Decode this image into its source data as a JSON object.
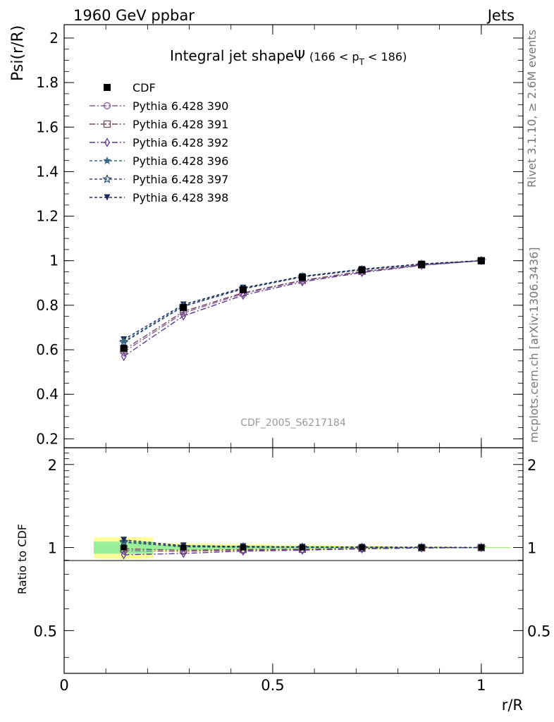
{
  "header": {
    "left": "1960 GeV ppbar",
    "right": "Jets"
  },
  "side_labels": {
    "rivet": "Rivet 3.1.10, ≥ 2.6M events",
    "mcplots": "mcplots.cern.ch [arXiv:1306.3436]"
  },
  "watermark": "CDF_2005_S6217184",
  "chart_data": [
    {
      "type": "line",
      "panel": "main",
      "title": "Integral jet shapeΨ",
      "title_suffix": "(166 < p",
      "title_sub": "T",
      "title_end": " < 186)",
      "ylabel": "Psi(r/R)",
      "xlim": [
        0,
        1.1
      ],
      "ylim": [
        0.16,
        2.06
      ],
      "yticks": [
        0.2,
        0.4,
        0.6,
        0.8,
        1,
        1.2,
        1.4,
        1.6,
        1.8,
        2
      ],
      "ytick_labels": [
        "0.2",
        "0.4",
        "0.6",
        "0.8",
        "1",
        "1.2",
        "1.4",
        "1.6",
        "1.8",
        "2"
      ],
      "x": [
        0.143,
        0.286,
        0.429,
        0.571,
        0.714,
        0.857,
        1.0
      ],
      "series": [
        {
          "name": "CDF",
          "kind": "data",
          "marker": "square-filled",
          "color": "#000000",
          "values": [
            0.606,
            0.79,
            0.87,
            0.925,
            0.958,
            0.983,
            1.0
          ]
        },
        {
          "name": "Pythia 6.428 390",
          "marker": "circle-open",
          "color": "#8a5a9e",
          "dash": "8,3,2,3",
          "values": [
            0.59,
            0.765,
            0.852,
            0.91,
            0.95,
            0.98,
            1.0
          ]
        },
        {
          "name": "Pythia 6.428 391",
          "marker": "square-open",
          "color": "#7a4a5e",
          "dash": "8,3,2,3",
          "values": [
            0.6,
            0.772,
            0.856,
            0.912,
            0.952,
            0.981,
            1.0
          ]
        },
        {
          "name": "Pythia 6.428 392",
          "marker": "diamond-open",
          "color": "#5b3a96",
          "dash": "8,3,2,3",
          "values": [
            0.57,
            0.752,
            0.845,
            0.905,
            0.947,
            0.979,
            1.0
          ]
        },
        {
          "name": "Pythia 6.428 396",
          "marker": "star-filled",
          "color": "#3a6a82",
          "dash": "4,3",
          "values": [
            0.638,
            0.797,
            0.875,
            0.928,
            0.96,
            0.985,
            1.0
          ]
        },
        {
          "name": "Pythia 6.428 397",
          "marker": "star-open",
          "color": "#2f4a6e",
          "dash": "4,3",
          "values": [
            0.633,
            0.795,
            0.873,
            0.927,
            0.959,
            0.984,
            1.0
          ]
        },
        {
          "name": "Pythia 6.428 398",
          "marker": "triangle-down-filled",
          "color": "#1e2a5a",
          "dash": "4,3",
          "values": [
            0.646,
            0.803,
            0.878,
            0.93,
            0.962,
            0.986,
            1.0
          ]
        }
      ]
    },
    {
      "type": "line",
      "panel": "ratio",
      "ylabel": "Ratio to CDF",
      "xlabel": "r/R",
      "xlim": [
        0,
        1.1
      ],
      "ylim": [
        0.35,
        2.3
      ],
      "yticks": [
        0.5,
        1,
        2
      ],
      "ytick_labels": [
        "0.5",
        "1",
        "2"
      ],
      "xticks": [
        0,
        0.5,
        1
      ],
      "xtick_labels": [
        "0",
        "0.5",
        "1"
      ],
      "x": [
        0.143,
        0.286,
        0.429,
        0.571,
        0.714,
        0.857,
        1.0
      ],
      "band": {
        "x_edges": [
          0.071,
          0.214,
          0.357,
          0.5,
          0.643,
          0.786,
          0.929,
          1.071
        ],
        "outer": [
          0.09,
          0.035,
          0.03,
          0.022,
          0.015,
          0.01,
          0.005
        ],
        "inner": [
          0.05,
          0.02,
          0.015,
          0.011,
          0.008,
          0.005,
          0.003
        ],
        "outer_color": "#ffff99",
        "inner_color": "#99ee99"
      },
      "series": [
        {
          "name": "Pythia 6.428 390",
          "values": [
            0.974,
            0.968,
            0.979,
            0.984,
            0.992,
            0.997,
            1.0
          ]
        },
        {
          "name": "Pythia 6.428 391",
          "values": [
            0.99,
            0.977,
            0.984,
            0.986,
            0.994,
            0.998,
            1.0
          ]
        },
        {
          "name": "Pythia 6.428 392",
          "values": [
            0.941,
            0.952,
            0.971,
            0.978,
            0.989,
            0.996,
            1.0
          ]
        },
        {
          "name": "Pythia 6.428 396",
          "values": [
            1.053,
            1.009,
            1.006,
            1.003,
            1.002,
            1.002,
            1.0
          ]
        },
        {
          "name": "Pythia 6.428 397",
          "values": [
            1.045,
            1.006,
            1.003,
            1.002,
            1.001,
            1.001,
            1.0
          ]
        },
        {
          "name": "Pythia 6.428 398",
          "values": [
            1.066,
            1.016,
            1.009,
            1.005,
            1.004,
            1.003,
            1.0
          ]
        }
      ]
    }
  ]
}
